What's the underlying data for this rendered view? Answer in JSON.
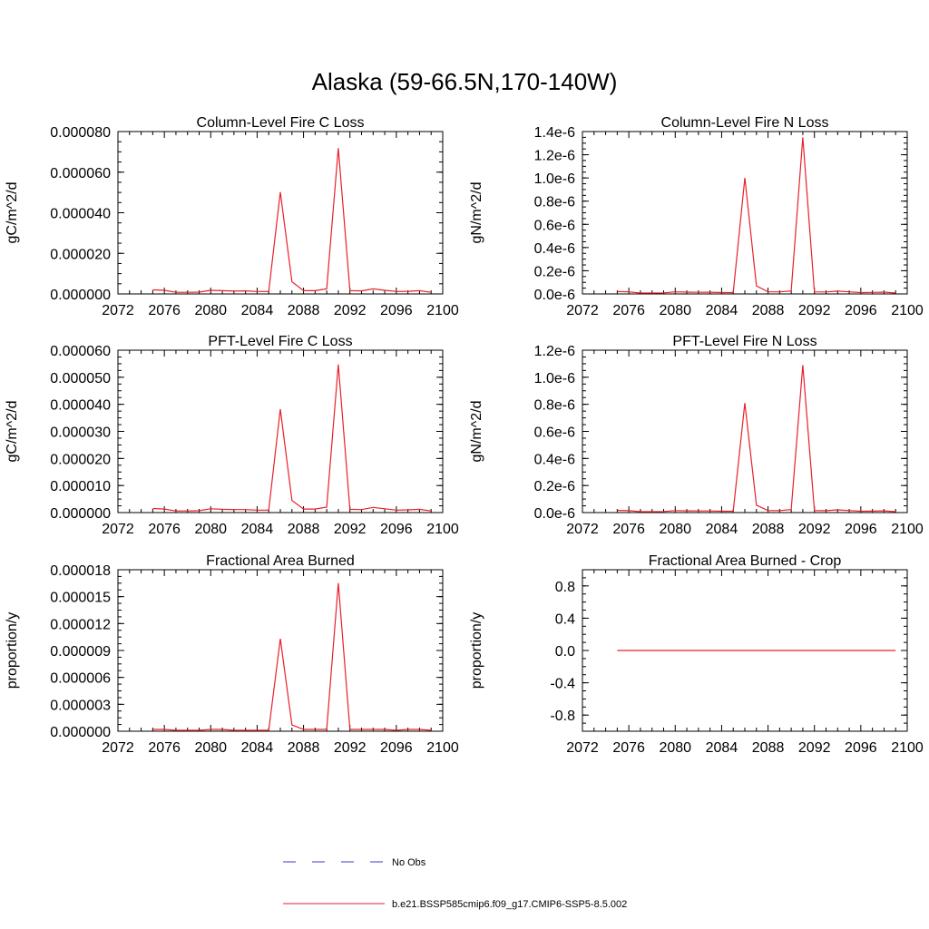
{
  "title": "Alaska (59-66.5N,170-140W)",
  "colors": {
    "model": "#e8202a",
    "obs": "#3a3ac8",
    "axis": "#000000"
  },
  "x_ticks": [
    "2072",
    "2076",
    "2080",
    "2084",
    "2088",
    "2092",
    "2096",
    "2100"
  ],
  "legend": [
    {
      "label": "No Obs",
      "style": "dashed",
      "color": "#3a3ac8"
    },
    {
      "label": "b.e21.BSSP585cmip6.f09_g17.CMIP6-SSP5-8.5.002",
      "style": "solid",
      "color": "#e8202a"
    }
  ],
  "chart_data": [
    {
      "type": "line",
      "title": "Column-Level Fire C Loss",
      "ylabel": "gC/m^2/d",
      "xlim": [
        2072,
        2100
      ],
      "ylim": [
        0,
        8e-05
      ],
      "y_ticks": [
        "0.000000",
        "0.000020",
        "0.000040",
        "0.000060",
        "0.000080"
      ],
      "x": [
        2075,
        2076,
        2077,
        2078,
        2079,
        2080,
        2081,
        2082,
        2083,
        2084,
        2085,
        2086,
        2087,
        2088,
        2089,
        2090,
        2091,
        2092,
        2093,
        2094,
        2095,
        2096,
        2097,
        2098,
        2099
      ],
      "series": [
        {
          "values": [
            2e-06,
            1.8e-06,
            8e-07,
            8e-07,
            9e-07,
            1.8e-06,
            1.6e-06,
            1.4e-06,
            1.5e-06,
            1.2e-06,
            1.2e-06,
            5.02e-05,
            6e-06,
            1.6e-06,
            1.6e-06,
            2.5e-06,
            7.18e-05,
            1.6e-06,
            1.5e-06,
            2.5e-06,
            1.8e-06,
            1.2e-06,
            1.3e-06,
            1.6e-06,
            8e-07
          ]
        }
      ]
    },
    {
      "type": "line",
      "title": "Column-Level Fire N Loss",
      "ylabel": "gN/m^2/d",
      "xlim": [
        2072,
        2100
      ],
      "ylim": [
        0,
        1.4e-06
      ],
      "y_ticks": [
        "0.0e-6",
        "0.2e-6",
        "0.4e-6",
        "0.6e-6",
        "0.8e-6",
        "1.0e-6",
        "1.2e-6",
        "1.4e-6"
      ],
      "x": [
        2075,
        2076,
        2077,
        2078,
        2079,
        2080,
        2081,
        2082,
        2083,
        2084,
        2085,
        2086,
        2087,
        2088,
        2089,
        2090,
        2091,
        2092,
        2093,
        2094,
        2095,
        2096,
        2097,
        2098,
        2099
      ],
      "series": [
        {
          "values": [
            2e-08,
            1.8e-08,
            8e-09,
            8e-09,
            9e-09,
            1.8e-08,
            1.6e-08,
            1.4e-08,
            1.5e-08,
            1.2e-08,
            1.2e-08,
            1e-06,
            7e-08,
            1.8e-08,
            1.8e-08,
            2.6e-08,
            1.35e-06,
            1.8e-08,
            1.7e-08,
            2.4e-08,
            1.8e-08,
            1.2e-08,
            1.3e-08,
            1.6e-08,
            8e-09
          ]
        }
      ]
    },
    {
      "type": "line",
      "title": "PFT-Level Fire C Loss",
      "ylabel": "gC/m^2/d",
      "xlim": [
        2072,
        2100
      ],
      "ylim": [
        0,
        6e-05
      ],
      "y_ticks": [
        "0.000000",
        "0.000010",
        "0.000020",
        "0.000030",
        "0.000040",
        "0.000050",
        "0.000060"
      ],
      "x": [
        2075,
        2076,
        2077,
        2078,
        2079,
        2080,
        2081,
        2082,
        2083,
        2084,
        2085,
        2086,
        2087,
        2088,
        2089,
        2090,
        2091,
        2092,
        2093,
        2094,
        2095,
        2096,
        2097,
        2098,
        2099
      ],
      "series": [
        {
          "values": [
            1.5e-06,
            1.3e-06,
            6e-07,
            6e-07,
            7e-07,
            1.4e-06,
            1.2e-06,
            1.1e-06,
            1.1e-06,
            9e-07,
            9e-07,
            3.82e-05,
            4.5e-06,
            1.3e-06,
            1.3e-06,
            2e-06,
            5.47e-05,
            1.2e-06,
            1.1e-06,
            1.9e-06,
            1.4e-06,
            9e-07,
            1e-06,
            1.2e-06,
            6e-07
          ]
        }
      ]
    },
    {
      "type": "line",
      "title": "PFT-Level Fire N Loss",
      "ylabel": "gN/m^2/d",
      "xlim": [
        2072,
        2100
      ],
      "ylim": [
        0,
        1.2e-06
      ],
      "y_ticks": [
        "0.0e-6",
        "0.2e-6",
        "0.4e-6",
        "0.6e-6",
        "0.8e-6",
        "1.0e-6",
        "1.2e-6"
      ],
      "x": [
        2075,
        2076,
        2077,
        2078,
        2079,
        2080,
        2081,
        2082,
        2083,
        2084,
        2085,
        2086,
        2087,
        2088,
        2089,
        2090,
        2091,
        2092,
        2093,
        2094,
        2095,
        2096,
        2097,
        2098,
        2099
      ],
      "series": [
        {
          "values": [
            1.6e-08,
            1.4e-08,
            7e-09,
            7e-09,
            8e-09,
            1.5e-08,
            1.3e-08,
            1.2e-08,
            1.2e-08,
            1e-08,
            1e-08,
            8.1e-07,
            5.5e-08,
            1.5e-08,
            1.5e-08,
            2.2e-08,
            1.09e-06,
            1.5e-08,
            1.4e-08,
            2e-08,
            1.5e-08,
            1e-08,
            1.1e-08,
            1.3e-08,
            7e-09
          ]
        }
      ]
    },
    {
      "type": "line",
      "title": "Fractional Area Burned",
      "ylabel": "proportion/y",
      "xlim": [
        2072,
        2100
      ],
      "ylim": [
        0,
        1.8e-05
      ],
      "y_ticks": [
        "0.000000",
        "0.000003",
        "0.000006",
        "0.000009",
        "0.000012",
        "0.000015",
        "0.000018"
      ],
      "x": [
        2075,
        2076,
        2077,
        2078,
        2079,
        2080,
        2081,
        2082,
        2083,
        2084,
        2085,
        2086,
        2087,
        2088,
        2089,
        2090,
        2091,
        2092,
        2093,
        2094,
        2095,
        2096,
        2097,
        2098,
        2099
      ],
      "series": [
        {
          "values": [
            2e-07,
            2e-07,
            1e-07,
            1e-07,
            1e-07,
            2e-07,
            2e-07,
            1e-07,
            1e-07,
            1e-07,
            1e-07,
            1.03e-05,
            7e-07,
            2e-07,
            2e-07,
            2e-07,
            1.65e-05,
            2e-07,
            2e-07,
            2e-07,
            2e-07,
            1e-07,
            2e-07,
            2e-07,
            1e-07
          ]
        }
      ]
    },
    {
      "type": "line",
      "title": "Fractional Area Burned - Crop",
      "ylabel": "proportion/y",
      "xlim": [
        2072,
        2100
      ],
      "ylim": [
        -1,
        1
      ],
      "y_ticks": [
        "-0.8",
        "-0.4",
        "0.0",
        "0.4",
        "0.8"
      ],
      "y_tick_values": [
        -0.8,
        -0.4,
        0,
        0.4,
        0.8
      ],
      "x": [
        2075,
        2099
      ],
      "series": [
        {
          "values": [
            0,
            0
          ]
        }
      ]
    }
  ]
}
